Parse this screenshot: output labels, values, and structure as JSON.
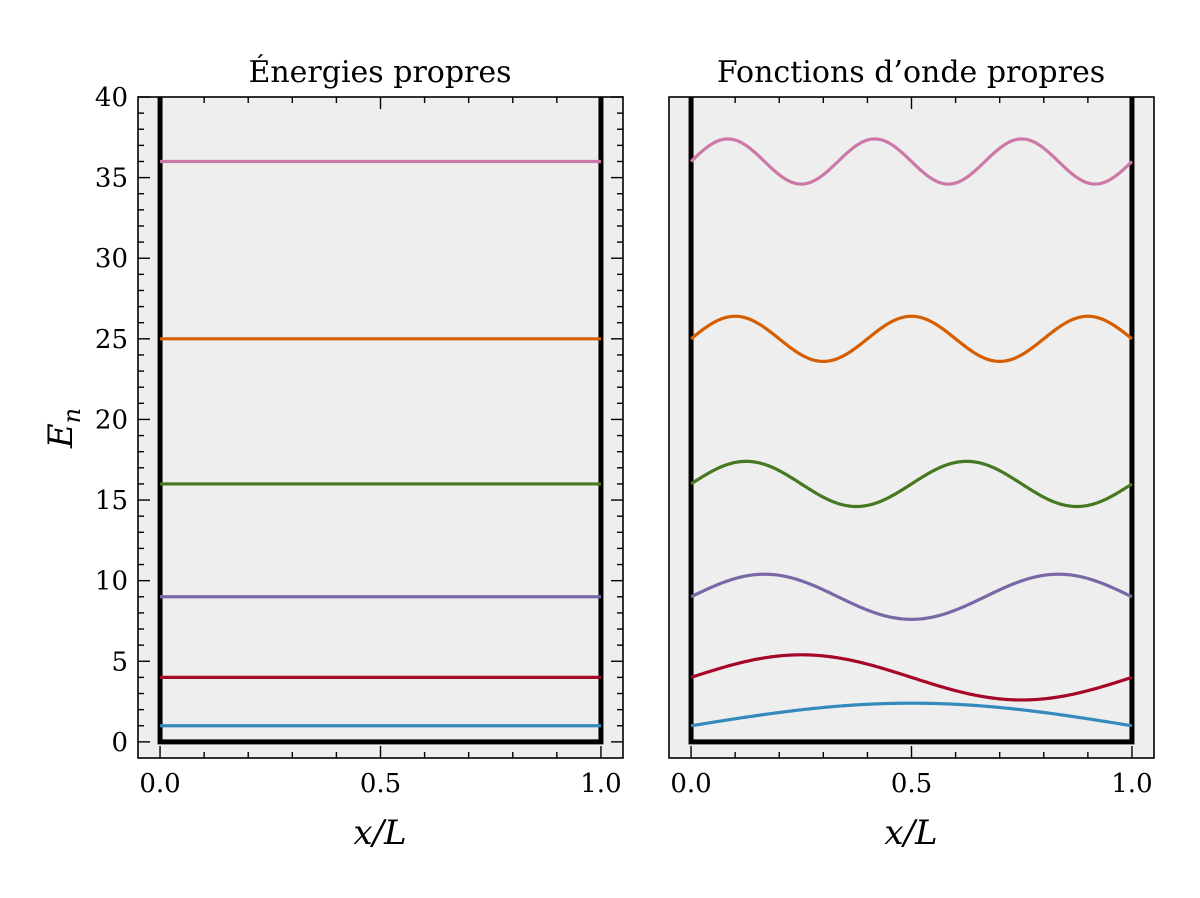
{
  "chart_data": [
    {
      "type": "line",
      "title": "Énergies propres",
      "xlabel": "x/L",
      "ylabel": "E",
      "ylabel_sub": "n",
      "xlim": [
        -0.05,
        1.05
      ],
      "ylim": [
        -1,
        40
      ],
      "xticks": [
        0.0,
        0.5,
        1.0
      ],
      "xtick_labels": [
        "0.0",
        "0.5",
        "1.0"
      ],
      "yticks": [
        0,
        5,
        10,
        15,
        20,
        25,
        30,
        35,
        40
      ],
      "ytick_labels": [
        "0",
        "5",
        "10",
        "15",
        "20",
        "25",
        "30",
        "35",
        "40"
      ],
      "grid": false,
      "background": "#eeeeee",
      "well": {
        "x": [
          0,
          0,
          1,
          1
        ],
        "y": [
          40,
          0,
          0,
          40
        ],
        "color": "#000000"
      },
      "series": [
        {
          "n": 1,
          "energy": 1,
          "color": "#348abd"
        },
        {
          "n": 2,
          "energy": 4,
          "color": "#a60628"
        },
        {
          "n": 3,
          "energy": 9,
          "color": "#7a68a6"
        },
        {
          "n": 4,
          "energy": 16,
          "color": "#467821"
        },
        {
          "n": 5,
          "energy": 25,
          "color": "#d55e00"
        },
        {
          "n": 6,
          "energy": 36,
          "color": "#cc79a7"
        }
      ]
    },
    {
      "type": "line",
      "title": "Fonctions d’onde propres",
      "xlabel": "x/L",
      "ylabel": "",
      "xlim": [
        -0.05,
        1.05
      ],
      "ylim": [
        -1,
        40
      ],
      "xticks": [
        0.0,
        0.5,
        1.0
      ],
      "xtick_labels": [
        "0.0",
        "0.5",
        "1.0"
      ],
      "grid": false,
      "background": "#eeeeee",
      "well": {
        "x": [
          0,
          0,
          1,
          1
        ],
        "y": [
          40,
          0,
          0,
          40
        ],
        "color": "#000000"
      },
      "series": [
        {
          "n": 1,
          "energy": 1,
          "amplitude": 1.4,
          "color": "#348abd"
        },
        {
          "n": 2,
          "energy": 4,
          "amplitude": 1.4,
          "color": "#a60628"
        },
        {
          "n": 3,
          "energy": 9,
          "amplitude": 1.4,
          "color": "#7a68a6"
        },
        {
          "n": 4,
          "energy": 16,
          "amplitude": 1.4,
          "color": "#467821"
        },
        {
          "n": 5,
          "energy": 25,
          "amplitude": 1.4,
          "color": "#d55e00"
        },
        {
          "n": 6,
          "energy": 36,
          "amplitude": 1.4,
          "color": "#cc79a7"
        }
      ]
    }
  ]
}
